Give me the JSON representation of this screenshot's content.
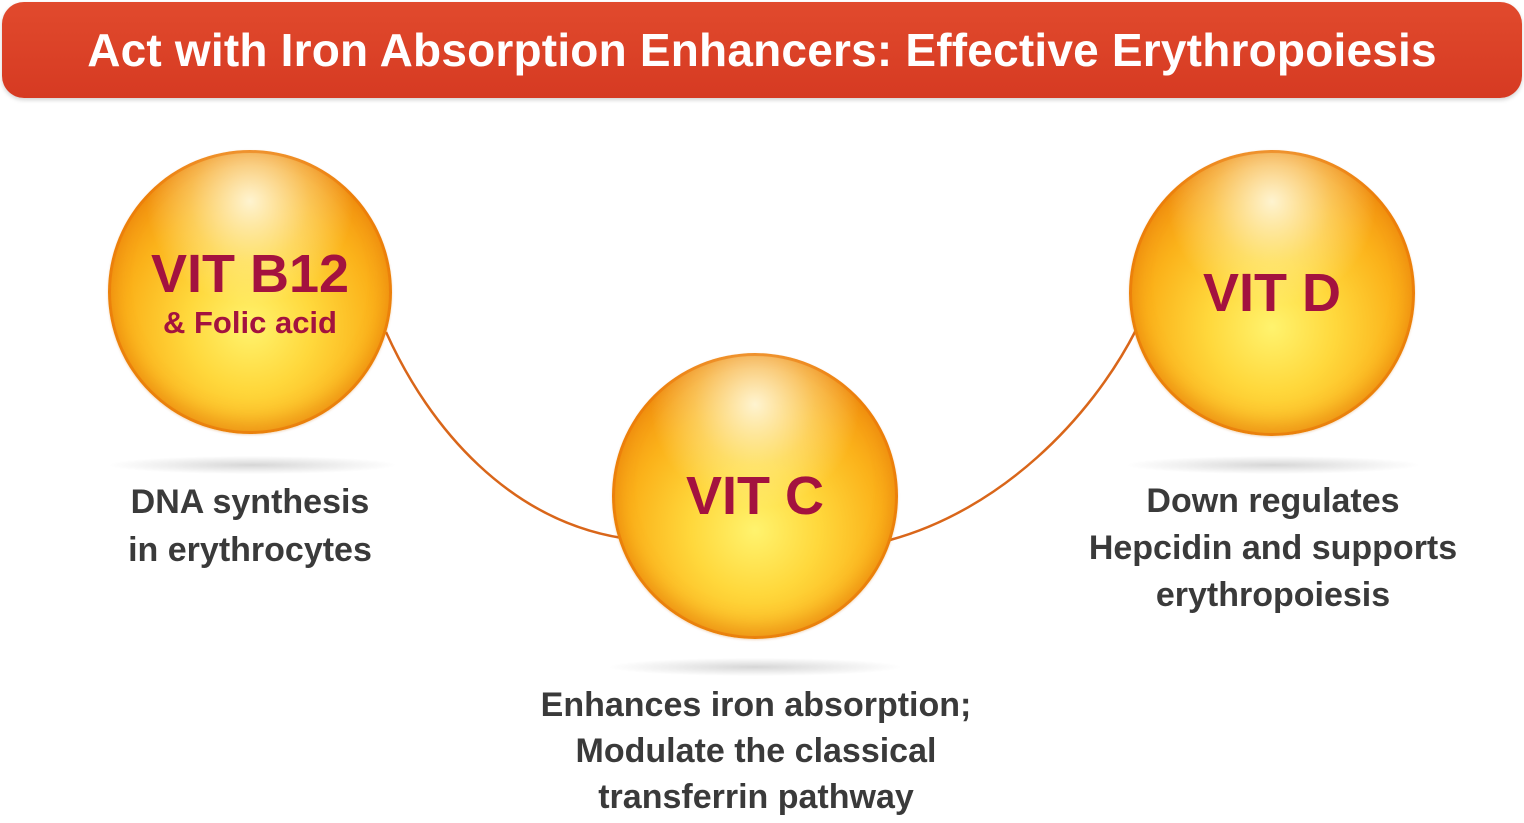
{
  "banner": {
    "title": "Act with Iron Absorption Enhancers: Effective Erythropoiesis"
  },
  "colors": {
    "banner": "#d63a22",
    "sphere_text": "#a3123f",
    "connector": "#d9661a",
    "description_text": "#3a3a3a"
  },
  "nodes": [
    {
      "title": "VIT B12",
      "subtitle": "& Folic acid",
      "description": [
        "DNA synthesis",
        "in erythrocytes"
      ]
    },
    {
      "title": "VIT C",
      "subtitle": "",
      "description": [
        "Enhances iron absorption;",
        "Modulate the classical",
        "transferrin pathway"
      ]
    },
    {
      "title": "VIT D",
      "subtitle": "",
      "description": [
        "Down regulates",
        "Hepcidin and supports",
        "erythropoiesis"
      ]
    }
  ]
}
